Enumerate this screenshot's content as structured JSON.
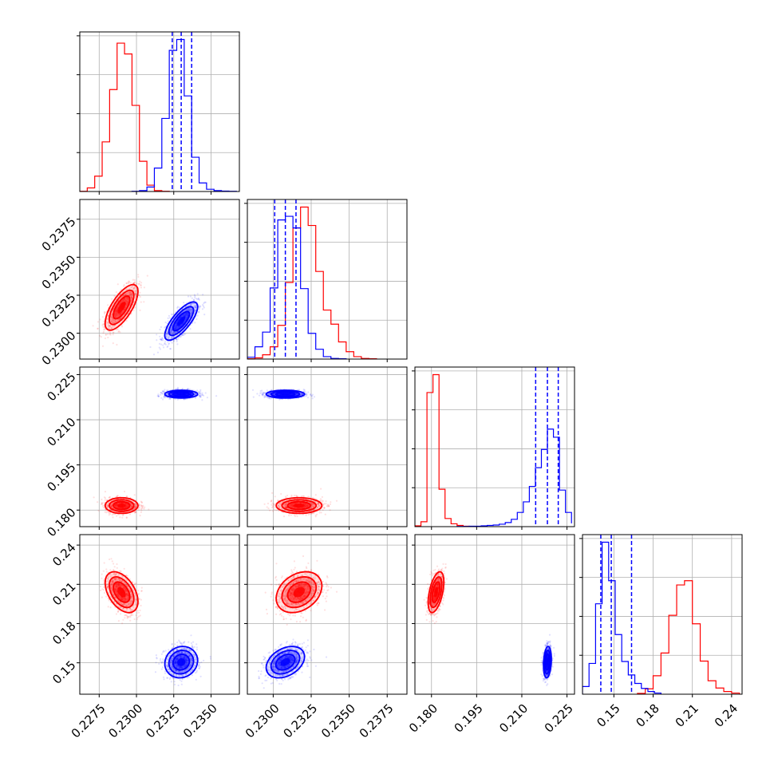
{
  "chart_data": {
    "type": "corner",
    "title": "",
    "grid": true,
    "colors": {
      "red": "#ff0000",
      "blue": "#0000ff",
      "grid": "#b0b0b0"
    },
    "axis_ranges": [
      [
        0.2262,
        0.2369
      ],
      [
        0.2283,
        0.2388
      ],
      [
        0.1745,
        0.2275
      ],
      [
        0.126,
        0.248
      ]
    ],
    "tick_labels": [
      [
        "0.2275",
        "0.2300",
        "0.2325",
        "0.2350"
      ],
      [
        "0.2300",
        "0.2325",
        "0.2350",
        "0.2375"
      ],
      [
        "0.180",
        "0.195",
        "0.210",
        "0.225"
      ],
      [
        "0.15",
        "0.18",
        "0.21",
        "0.24"
      ]
    ],
    "series": [
      {
        "color": "#ff0000",
        "means": [
          0.229,
          0.2317,
          0.1815,
          0.204
        ],
        "sds": [
          0.00055,
          0.00075,
          0.0013,
          0.0078
        ],
        "corr": [
          [
            1,
            0.7,
            0.0,
            -0.45
          ],
          [
            0.7,
            1,
            0.0,
            0.3
          ],
          [
            0.0,
            0.0,
            1,
            0.5
          ],
          [
            -0.45,
            0.3,
            0.5,
            1
          ]
        ],
        "hist": [
          {
            "edges": [
              0.2262,
              0.2267,
              0.2272,
              0.2277,
              0.2282,
              0.2287,
              0.2292,
              0.2297,
              0.2302,
              0.2307,
              0.2312,
              0.2317,
              0.2322
            ],
            "counts": [
              0.5,
              8,
              34,
              110,
              226,
              329,
              305,
              191,
              67,
              14,
              2,
              0.5
            ]
          },
          {
            "edges": [
              0.2283,
              0.2288,
              0.2293,
              0.2298,
              0.2303,
              0.2308,
              0.2313,
              0.2318,
              0.2323,
              0.2328,
              0.2333,
              0.2338,
              0.2343,
              0.2348,
              0.2353,
              0.2358,
              0.2363,
              0.2368
            ],
            "counts": [
              0.5,
              2,
              7,
              20,
              55,
              125,
              214,
              248,
              218,
              143,
              80,
              57,
              28,
              12,
              4,
              1,
              0.5
            ]
          },
          {
            "edges": [
              0.1745,
              0.1765,
              0.1785,
              0.1805,
              0.1825,
              0.1845,
              0.1865,
              0.1885,
              0.1905,
              0.1925
            ],
            "counts": [
              2,
              12,
              330,
              374,
              92,
              20,
              7,
              3,
              1
            ]
          },
          {
            "edges": [
              0.168,
              0.174,
              0.18,
              0.186,
              0.192,
              0.198,
              0.204,
              0.21,
              0.216,
              0.222,
              0.228,
              0.234,
              0.24,
              0.246
            ],
            "counts": [
              2,
              14,
              48,
              107,
              205,
              284,
              295,
              183,
              86,
              35,
              16,
              7,
              3
            ]
          }
        ]
      },
      {
        "color": "#0000ff",
        "means": [
          0.233,
          0.2308,
          0.2185,
          0.1505
        ],
        "sds": [
          0.00055,
          0.00063,
          0.00065,
          0.006
        ],
        "corr": [
          [
            1,
            0.75,
            0.0,
            0.1
          ],
          [
            0.75,
            1,
            0.0,
            0.35
          ],
          [
            0.0,
            0.0,
            1,
            0.2
          ],
          [
            0.1,
            0.35,
            0.2,
            1
          ]
        ],
        "hist": [
          {
            "edges": [
              0.2297,
              0.2302,
              0.2307,
              0.2312,
              0.2317,
              0.2322,
              0.2327,
              0.2332,
              0.2337,
              0.2342,
              0.2347,
              0.2352,
              0.2357,
              0.2362,
              0.2367
            ],
            "counts": [
              0.5,
              2,
              10,
              52,
              162,
              313,
              337,
              212,
              76,
              19,
              5,
              2,
              1,
              0.5
            ]
          },
          {
            "edges": [
              0.2283,
              0.2288,
              0.2293,
              0.2298,
              0.2303,
              0.2308,
              0.2313,
              0.2318,
              0.2323,
              0.2328,
              0.2333,
              0.2338,
              0.2343,
              0.2348
            ],
            "counts": [
              3,
              20,
              44,
              116,
              227,
              233,
              214,
              115,
              42,
              16,
              4,
              1,
              0.5
            ]
          },
          {
            "edges": [
              0.1885,
              0.1905,
              0.1925,
              0.1945,
              0.1965,
              0.1985,
              0.2005,
              0.2025,
              0.2045,
              0.2065,
              0.2085,
              0.2105,
              0.2125,
              0.2145,
              0.2165,
              0.2185,
              0.2205,
              0.2225,
              0.2245,
              0.2265
            ],
            "counts": [
              0.5,
              0.5,
              1,
              1,
              2,
              3,
              4,
              6,
              10,
              18,
              35,
              61,
              99,
              145,
              190,
              240,
              220,
              90,
              35,
              8
            ]
          },
          {
            "edges": [
              0.126,
              0.131,
              0.136,
              0.141,
              0.146,
              0.151,
              0.156,
              0.161,
              0.166,
              0.171,
              0.176,
              0.181,
              0.186
            ],
            "counts": [
              20,
              80,
              235,
              395,
              295,
              155,
              85,
              50,
              28,
              15,
              7,
              3
            ]
          }
        ]
      }
    ],
    "quantile_lines": [
      [
        0.2324,
        0.233,
        0.2337
      ],
      [
        0.2301,
        0.2308,
        0.2315
      ],
      [
        0.2146,
        0.2185,
        0.2221
      ],
      [
        0.14,
        0.148,
        0.1635
      ]
    ]
  }
}
